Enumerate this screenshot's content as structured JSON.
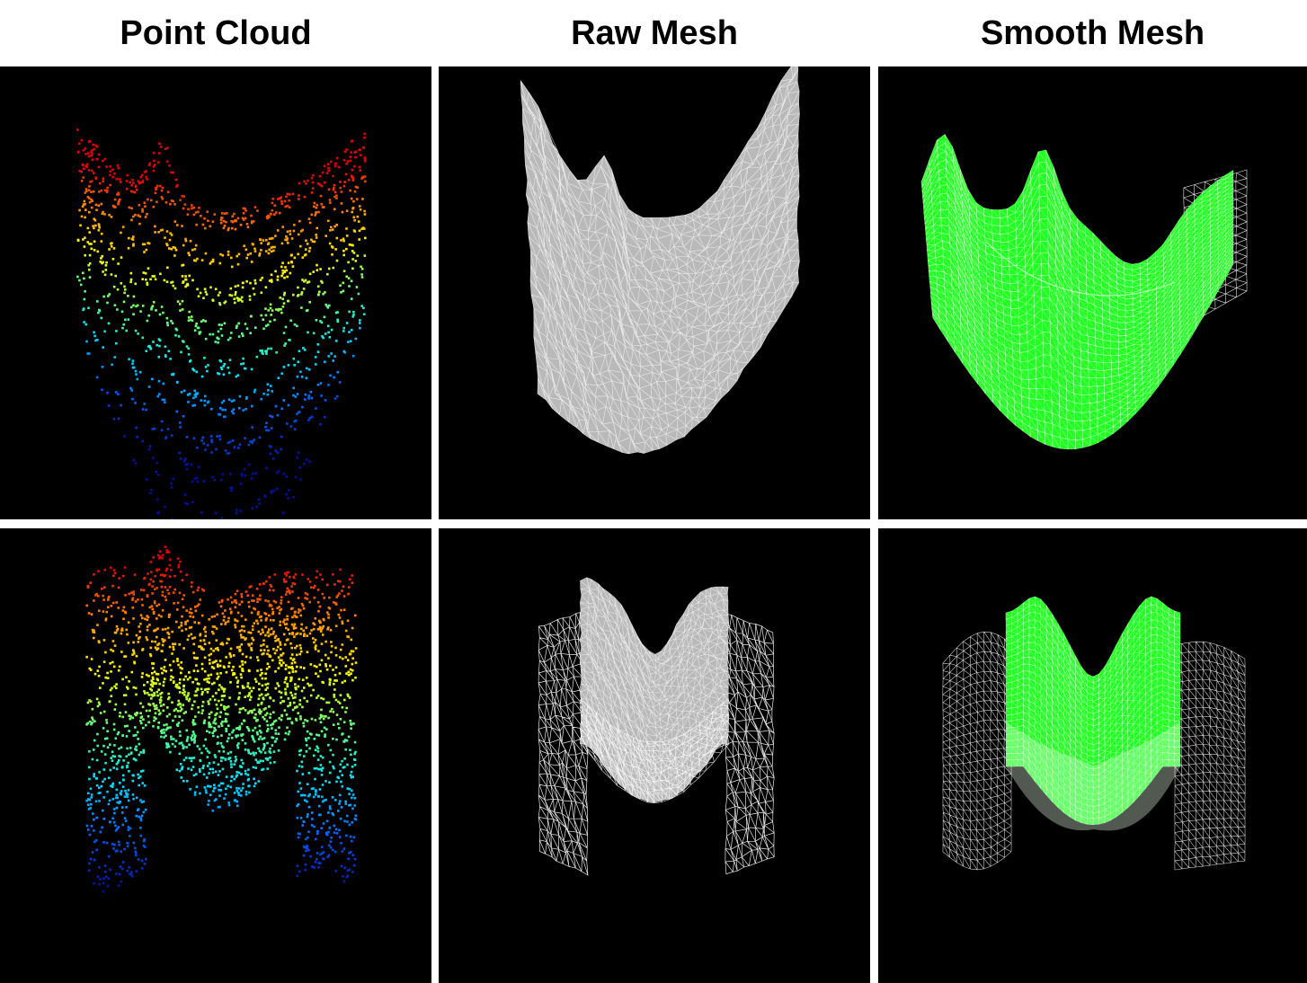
{
  "columns": [
    {
      "title": "Point Cloud"
    },
    {
      "title": "Raw Mesh"
    },
    {
      "title": "Smooth Mesh"
    }
  ],
  "rows": [
    {
      "shape": "u-saddle"
    },
    {
      "shape": "m-wave"
    }
  ],
  "colors": {
    "panel_background": "#000000",
    "raw_mesh": "#b9b9b9",
    "smooth_mesh": "#22ff22",
    "wireframe": "#ffffff",
    "colormap": [
      "#0010a0",
      "#0060ff",
      "#00e0ff",
      "#60ff80",
      "#ffff00",
      "#ff9000",
      "#e00000"
    ]
  }
}
